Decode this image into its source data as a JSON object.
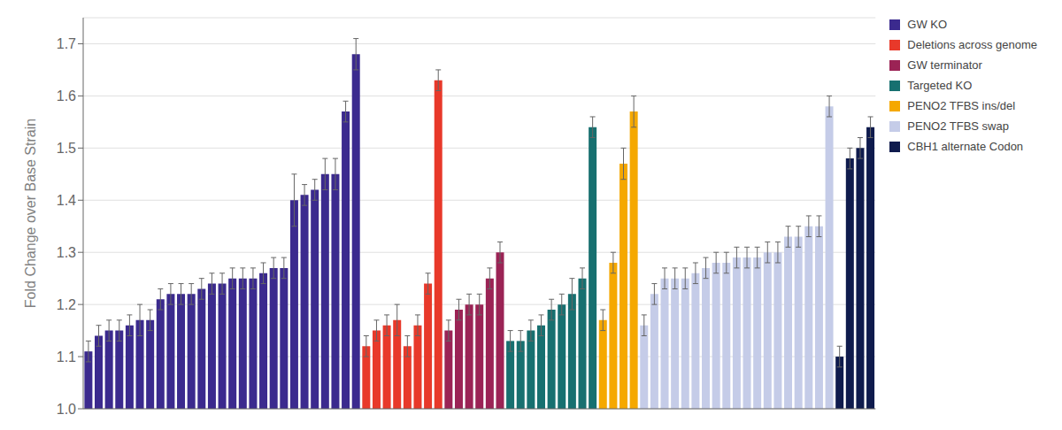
{
  "chart_data": {
    "type": "bar",
    "ylabel": "Fold Change over Base Strain",
    "series": [
      {
        "name": "GW KO",
        "color": "#3B2A8E",
        "values": [
          1.11,
          1.14,
          1.15,
          1.15,
          1.16,
          1.17,
          1.17,
          1.21,
          1.22,
          1.22,
          1.22,
          1.23,
          1.24,
          1.24,
          1.25,
          1.25,
          1.25,
          1.26,
          1.27,
          1.27,
          1.4,
          1.41,
          1.42,
          1.45,
          1.45,
          1.57,
          1.68
        ],
        "errors": [
          0.02,
          0.02,
          0.02,
          0.02,
          0.02,
          0.03,
          0.02,
          0.02,
          0.02,
          0.02,
          0.02,
          0.02,
          0.02,
          0.02,
          0.02,
          0.02,
          0.02,
          0.02,
          0.02,
          0.02,
          0.05,
          0.02,
          0.02,
          0.03,
          0.03,
          0.02,
          0.03
        ]
      },
      {
        "name": "Deletions across genome",
        "color": "#E8392A",
        "values": [
          1.12,
          1.15,
          1.16,
          1.17,
          1.12,
          1.16,
          1.24,
          1.63
        ],
        "errors": [
          0.02,
          0.02,
          0.02,
          0.03,
          0.02,
          0.02,
          0.02,
          0.02
        ]
      },
      {
        "name": "GW terminator",
        "color": "#9B2355",
        "values": [
          1.15,
          1.19,
          1.2,
          1.2,
          1.25,
          1.3
        ],
        "errors": [
          0.02,
          0.02,
          0.02,
          0.02,
          0.02,
          0.02
        ]
      },
      {
        "name": "Targeted KO",
        "color": "#177070",
        "values": [
          1.13,
          1.13,
          1.15,
          1.16,
          1.19,
          1.2,
          1.22,
          1.25,
          1.54
        ],
        "errors": [
          0.02,
          0.02,
          0.02,
          0.02,
          0.02,
          0.02,
          0.03,
          0.02,
          0.02
        ]
      },
      {
        "name": "PENO2 TFBS ins/del",
        "color": "#F5A800",
        "values": [
          1.17,
          1.28,
          1.47,
          1.57
        ],
        "errors": [
          0.02,
          0.02,
          0.03,
          0.03
        ]
      },
      {
        "name": "PENO2 TFBS swap",
        "color": "#C5CCE8",
        "values": [
          1.16,
          1.22,
          1.25,
          1.25,
          1.25,
          1.26,
          1.27,
          1.28,
          1.28,
          1.29,
          1.29,
          1.29,
          1.3,
          1.3,
          1.33,
          1.33,
          1.35,
          1.35,
          1.58
        ],
        "errors": [
          0.02,
          0.02,
          0.02,
          0.02,
          0.02,
          0.02,
          0.02,
          0.02,
          0.02,
          0.02,
          0.02,
          0.02,
          0.02,
          0.02,
          0.02,
          0.02,
          0.02,
          0.02,
          0.02
        ]
      },
      {
        "name": "CBH1 alternate Codon",
        "color": "#0F1B4D",
        "values": [
          1.1,
          1.48,
          1.5,
          1.54
        ],
        "errors": [
          0.02,
          0.02,
          0.02,
          0.02
        ]
      }
    ],
    "ylim": [
      1.0,
      1.75
    ],
    "yticks": [
      {
        "value": 1.0,
        "label": "1.0"
      },
      1.1,
      1.2,
      1.3,
      1.4,
      1.5,
      1.6,
      1.7
    ],
    "grid": true,
    "legend": "right",
    "tick_labels": "y"
  }
}
